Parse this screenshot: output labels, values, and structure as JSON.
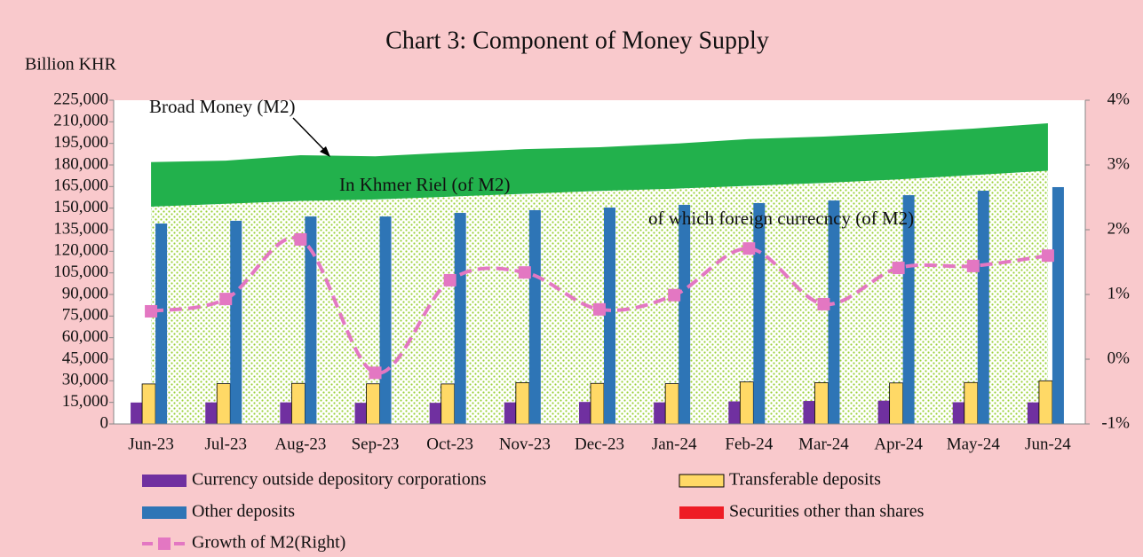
{
  "chart_data": {
    "type": "bar",
    "title": "Chart 3: Component of Money Supply",
    "y_label": "Billion KHR",
    "categories": [
      "Jun-23",
      "Jul-23",
      "Aug-23",
      "Sep-23",
      "Oct-23",
      "Nov-23",
      "Dec-23",
      "Jan-24",
      "Feb-24",
      "Mar-24",
      "Apr-24",
      "May-24",
      "Jun-24"
    ],
    "areas": [
      {
        "name": "Broad Money (M2)",
        "label": "In Khmer Riel (of M2)",
        "color": "#22b14c",
        "values": [
          182000,
          183000,
          186800,
          186000,
          188600,
          191000,
          192300,
          194800,
          198000,
          199700,
          202200,
          205300,
          209000
        ]
      },
      {
        "name": "of which foreign currecncy (of M2)",
        "color": "#9bd13a",
        "values": [
          151000,
          153000,
          155000,
          156000,
          158000,
          160000,
          162000,
          163500,
          165500,
          167500,
          170000,
          173000,
          176000
        ]
      }
    ],
    "series": [
      {
        "name": "Currency outside depository corporations",
        "color": "#7030a0",
        "values": [
          14900,
          15000,
          15000,
          14700,
          14700,
          15000,
          15300,
          15000,
          15700,
          16000,
          16200,
          15100,
          15000
        ]
      },
      {
        "name": "Transferable deposits",
        "color": "#ffd966",
        "values": [
          27800,
          28000,
          28200,
          27900,
          27800,
          28700,
          28200,
          28000,
          29200,
          28700,
          28500,
          28800,
          30000
        ]
      },
      {
        "name": "Other deposits",
        "color": "#2e75b6",
        "values": [
          139300,
          141200,
          144200,
          144200,
          146700,
          148600,
          150400,
          152300,
          153500,
          155300,
          159000,
          162100,
          164600
        ]
      },
      {
        "name": "Securities other than shares",
        "color": "#ee1c25",
        "values": [
          0,
          0,
          0,
          0,
          0,
          0,
          0,
          0,
          0,
          0,
          0,
          0,
          0
        ]
      },
      {
        "name": "Growth of M2(Right)",
        "type": "line",
        "axis": "y2",
        "color": "#e377c2",
        "values": [
          0.74,
          0.93,
          1.85,
          -0.21,
          1.22,
          1.34,
          0.77,
          0.99,
          1.71,
          0.85,
          1.41,
          1.44,
          1.6
        ]
      }
    ],
    "ylim": [
      0,
      225000
    ],
    "yticks": [
      0,
      {
        "value": 15000,
        "label": "15,000"
      },
      {
        "value": 30000,
        "label": "30,000"
      },
      {
        "value": 45000,
        "label": "45,000"
      },
      {
        "value": 60000,
        "label": "60,000"
      },
      {
        "value": 75000,
        "label": "75,000"
      },
      {
        "value": 90000,
        "label": "90,000"
      },
      {
        "value": 105000,
        "label": "105,000"
      },
      {
        "value": 120000,
        "label": "120,000"
      },
      {
        "value": 135000,
        "label": "135,000"
      },
      {
        "value": 150000,
        "label": "150,000"
      },
      {
        "value": 165000,
        "label": "165,000"
      },
      {
        "value": 180000,
        "label": "180,000"
      },
      {
        "value": 195000,
        "label": "195,000"
      },
      {
        "value": 210000,
        "label": "210,000"
      },
      {
        "value": 225000,
        "label": "225,000"
      }
    ],
    "y2lim": [
      -1,
      4
    ],
    "y2ticks": [
      {
        "value": -1,
        "label": "-1%"
      },
      {
        "value": 0,
        "label": "0%"
      },
      {
        "value": 1,
        "label": "1%"
      },
      {
        "value": 2,
        "label": "2%"
      },
      {
        "value": 3,
        "label": "3%"
      },
      {
        "value": 4,
        "label": "4%"
      }
    ]
  }
}
